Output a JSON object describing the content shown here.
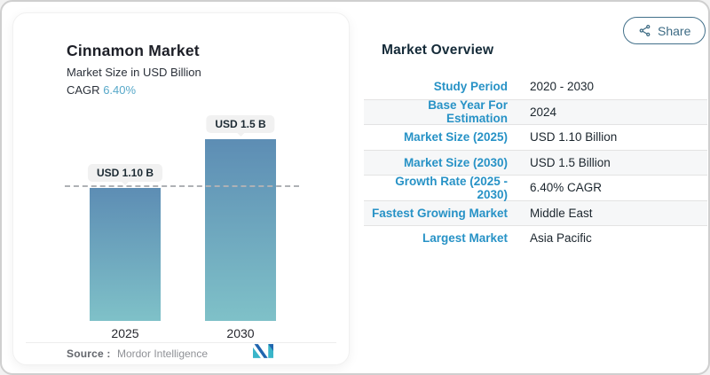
{
  "share": {
    "label": "Share",
    "icon": "share-nodes-icon",
    "color": "#3d6b84"
  },
  "chart_card": {
    "title": "Cinnamon Market",
    "subtitle": "Market Size in USD Billion",
    "cagr_label": "CAGR",
    "cagr_value": "6.40%",
    "source_label": "Source :",
    "source_value": "Mordor Intelligence",
    "logo": "mordor-intelligence-logo"
  },
  "chart_data": {
    "type": "bar",
    "categories": [
      "2025",
      "2030"
    ],
    "values": [
      1.1,
      1.5
    ],
    "value_labels": [
      "USD 1.10 B",
      "USD 1.5 B"
    ],
    "title": "Cinnamon Market",
    "ylabel": "Market Size in USD Billion",
    "unit": "USD Billion",
    "ylim": [
      0,
      1.5
    ],
    "reference_line": 1.1,
    "grid": false,
    "legend": false,
    "bar_gradient_top": "#5d8db4",
    "bar_gradient_bottom": "#7fc1c8"
  },
  "overview": {
    "heading": "Market Overview",
    "rows": [
      {
        "label": "Study Period",
        "value": "2020 - 2030"
      },
      {
        "label": "Base Year For Estimation",
        "value": "2024"
      },
      {
        "label": "Market Size (2025)",
        "value": "USD 1.10 Billion"
      },
      {
        "label": "Market Size (2030)",
        "value": "USD 1.5 Billion"
      },
      {
        "label": "Growth Rate (2025 - 2030)",
        "value": "6.40% CAGR"
      },
      {
        "label": "Fastest Growing Market",
        "value": "Middle East"
      },
      {
        "label": "Largest Market",
        "value": "Asia Pacific"
      }
    ]
  },
  "colors": {
    "accent_blue": "#2792c6",
    "cagr_teal": "#57a8c9",
    "heading_navy": "#152b39",
    "logo_teal": "#3ab5c9",
    "logo_blue": "#2065ae"
  }
}
